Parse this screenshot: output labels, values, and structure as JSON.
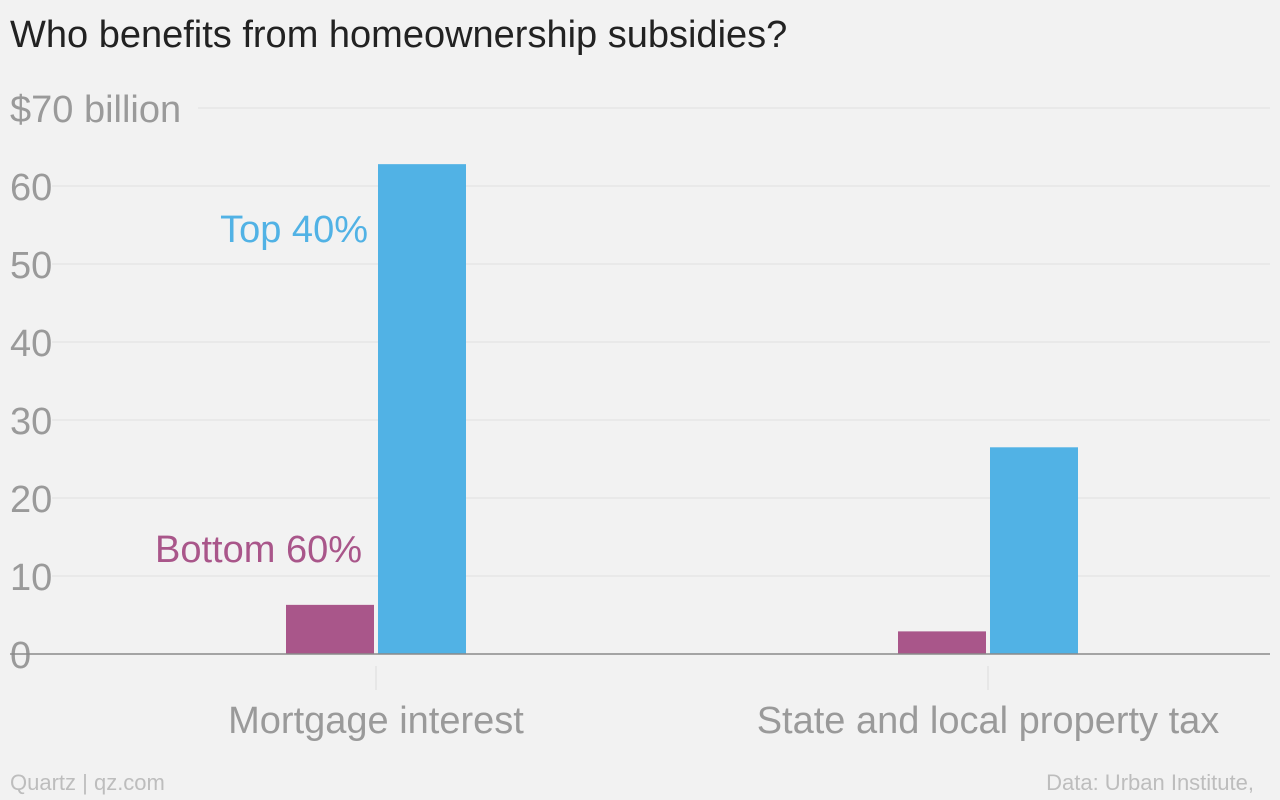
{
  "chart_data": {
    "type": "bar",
    "title": "Who benefits from homeownership subsidies?",
    "categories": [
      "Mortgage interest",
      "State and local property tax"
    ],
    "series": [
      {
        "name": "Bottom 60%",
        "color": "#a9568a",
        "values": [
          6.3,
          2.9
        ]
      },
      {
        "name": "Top 40%",
        "color": "#51b2e5",
        "values": [
          62.8,
          26.5
        ]
      }
    ],
    "ylim": [
      0,
      70
    ],
    "yticks": [
      0,
      10,
      20,
      30,
      40,
      50,
      60,
      70
    ],
    "y_top_tick_label": "$70 billion",
    "grid": true,
    "legend": "inline labels beside first category bars"
  },
  "source_left": "Quartz | qz.com",
  "source_right": "Data: Urban Institute,"
}
